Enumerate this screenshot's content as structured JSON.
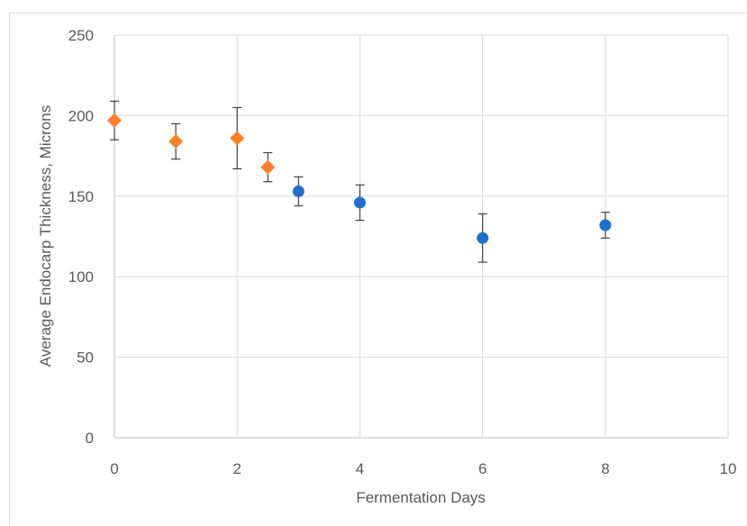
{
  "chart_data": {
    "type": "scatter",
    "title": "",
    "xlabel": "Fermentation Days",
    "ylabel": "Average Endocarp Thickness, Microns",
    "xlim": [
      0,
      10
    ],
    "ylim": [
      0,
      250
    ],
    "x_ticks": [
      0,
      2,
      4,
      6,
      8,
      10
    ],
    "y_ticks": [
      0,
      50,
      100,
      150,
      200,
      250
    ],
    "grid": true,
    "legend": "none",
    "series": [
      {
        "marker": "diamond",
        "color": "#ff7f27",
        "points": [
          {
            "x": 0,
            "y": 197,
            "err": 12
          },
          {
            "x": 1,
            "y": 184,
            "err": 11
          },
          {
            "x": 2,
            "y": 186,
            "err": 19
          },
          {
            "x": 2.5,
            "y": 168,
            "err": 9
          }
        ]
      },
      {
        "marker": "circle",
        "color": "#1f6fcc",
        "points": [
          {
            "x": 3,
            "y": 153,
            "err": 9
          },
          {
            "x": 4,
            "y": 146,
            "err": 11
          },
          {
            "x": 6,
            "y": 124,
            "err": 15
          },
          {
            "x": 8,
            "y": 132,
            "err": 8
          }
        ]
      }
    ]
  }
}
